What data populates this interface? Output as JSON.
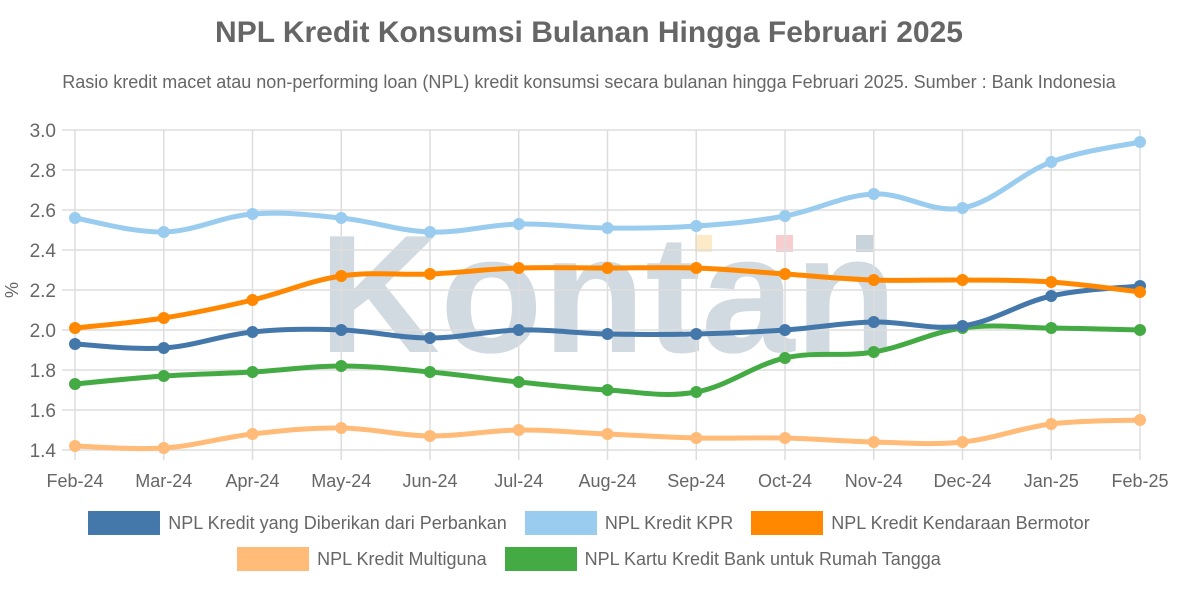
{
  "title": "NPL Kredit Konsumsi Bulanan Hingga Februari 2025",
  "subtitle": "Rasio kredit macet atau non-performing loan (NPL) kredit konsumsi secara bulanan hingga Februari 2025. Sumber : Bank Indonesia",
  "watermark": "Kontan",
  "chart_data": {
    "type": "line",
    "title": "NPL Kredit Konsumsi Bulanan Hingga Februari 2025",
    "subtitle": "Rasio kredit macet atau non-performing loan (NPL) kredit konsumsi secara bulanan hingga Februari 2025. Sumber : Bank Indonesia",
    "xlabel": "",
    "ylabel": "%",
    "ylim": [
      1.4,
      3.0
    ],
    "yticks": [
      "1.4",
      "1.6",
      "1.8",
      "2.0",
      "2.2",
      "2.4",
      "2.6",
      "2.8",
      "3.0"
    ],
    "grid": true,
    "legend_position": "bottom",
    "categories": [
      "Feb-24",
      "Mar-24",
      "Apr-24",
      "May-24",
      "Jun-24",
      "Jul-24",
      "Aug-24",
      "Sep-24",
      "Oct-24",
      "Nov-24",
      "Dec-24",
      "Jan-25",
      "Feb-25"
    ],
    "series": [
      {
        "name": "NPL Kredit yang Diberikan dari Perbankan",
        "color": "#4477aa",
        "values": [
          1.93,
          1.91,
          1.99,
          2.0,
          1.96,
          2.0,
          1.98,
          1.98,
          2.0,
          2.04,
          2.02,
          2.17,
          2.22
        ]
      },
      {
        "name": "NPL Kredit KPR",
        "color": "#99ccee",
        "values": [
          2.56,
          2.49,
          2.58,
          2.56,
          2.49,
          2.53,
          2.51,
          2.52,
          2.57,
          2.68,
          2.61,
          2.84,
          2.94
        ]
      },
      {
        "name": "NPL Kredit Kendaraan Bermotor",
        "color": "#ff8800",
        "values": [
          2.01,
          2.06,
          2.15,
          2.27,
          2.28,
          2.31,
          2.31,
          2.31,
          2.28,
          2.25,
          2.25,
          2.24,
          2.19
        ]
      },
      {
        "name": "NPL Kredit Multiguna",
        "color": "#ffbb77",
        "values": [
          1.42,
          1.41,
          1.48,
          1.51,
          1.47,
          1.5,
          1.48,
          1.46,
          1.46,
          1.44,
          1.44,
          1.53,
          1.55
        ]
      },
      {
        "name": "NPL Kartu Kredit Bank untuk Rumah Tangga",
        "color": "#44aa44",
        "values": [
          1.73,
          1.77,
          1.79,
          1.82,
          1.79,
          1.74,
          1.7,
          1.69,
          1.86,
          1.89,
          2.01,
          2.01,
          2.0
        ]
      }
    ]
  },
  "legend": {
    "row1": [
      {
        "label": "NPL Kredit yang Diberikan dari Perbankan",
        "color": "#4477aa"
      },
      {
        "label": "NPL Kredit KPR",
        "color": "#99ccee"
      },
      {
        "label": "NPL Kredit Kendaraan Bermotor",
        "color": "#ff8800"
      }
    ],
    "row2": [
      {
        "label": "NPL Kredit Multiguna",
        "color": "#ffbb77"
      },
      {
        "label": "NPL Kartu Kredit Bank untuk Rumah Tangga",
        "color": "#44aa44"
      }
    ]
  }
}
